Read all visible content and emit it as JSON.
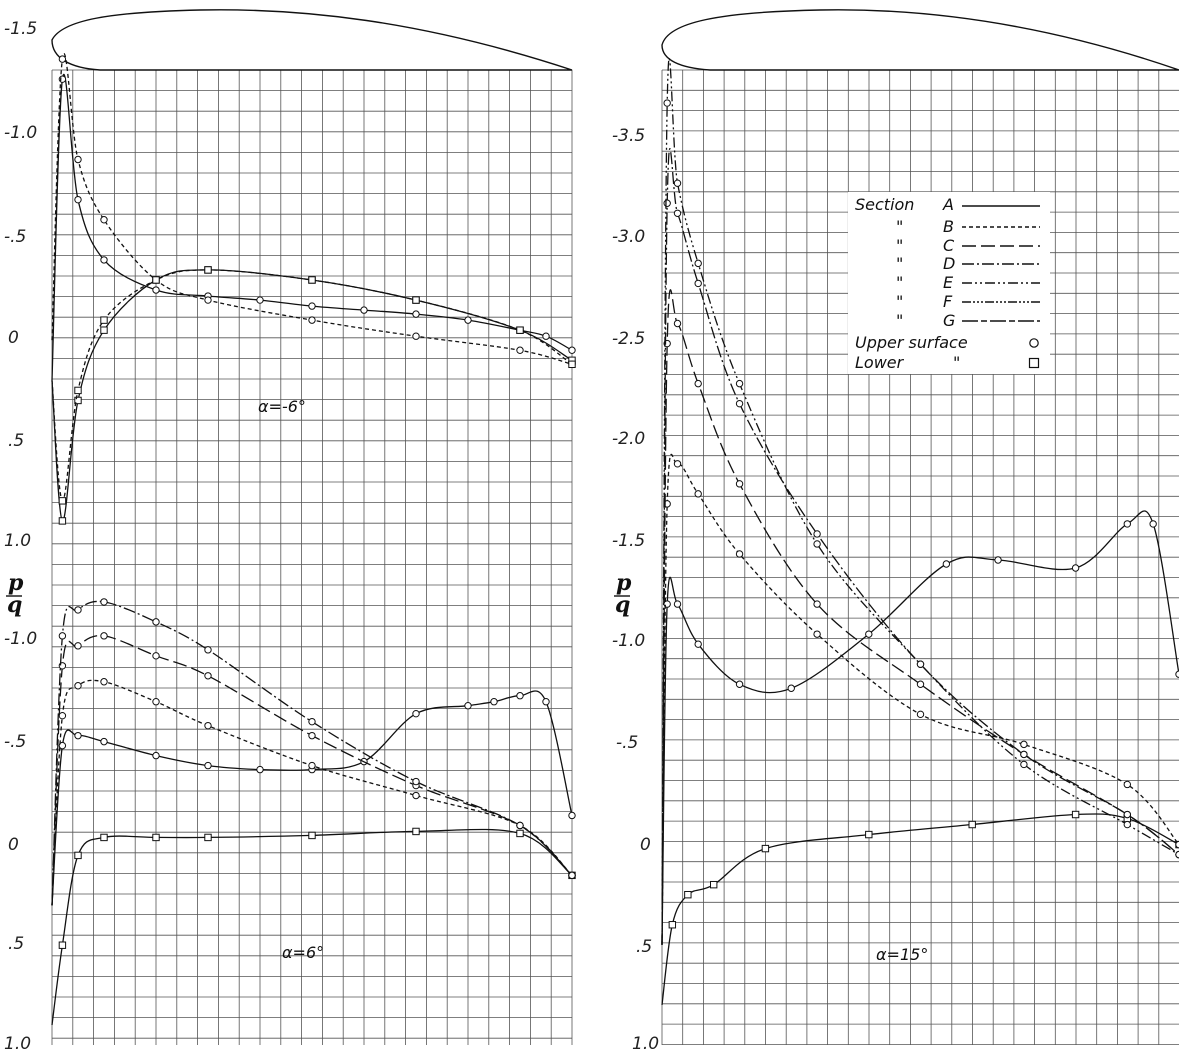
{
  "chart_data": [
    {
      "type": "line",
      "panel": "left-top",
      "annotation": "α=-6°",
      "ylabel": "",
      "y_ticks": [
        "-1.5",
        "-1.0",
        "-.5",
        "0",
        ".5",
        "1.0"
      ],
      "ylim": [
        1.0,
        -1.55
      ],
      "xlim": [
        0,
        1
      ],
      "series": [
        {
          "name": "A",
          "surface": "upper",
          "x": [
            0,
            0.02,
            0.05,
            0.1,
            0.2,
            0.3,
            0.4,
            0.5,
            0.6,
            0.7,
            0.8,
            0.9,
            0.95,
            1.0
          ],
          "y": [
            0.2,
            -1.3,
            -0.7,
            -0.4,
            -0.25,
            -0.22,
            -0.2,
            -0.17,
            -0.15,
            -0.13,
            -0.1,
            -0.05,
            -0.02,
            0.05
          ]
        },
        {
          "name": "A",
          "surface": "lower",
          "x": [
            0,
            0.02,
            0.05,
            0.1,
            0.2,
            0.3,
            0.5,
            0.7,
            0.9,
            1.0
          ],
          "y": [
            0.2,
            0.9,
            0.3,
            -0.05,
            -0.3,
            -0.35,
            -0.3,
            -0.2,
            -0.05,
            0.1
          ]
        },
        {
          "name": "B",
          "surface": "upper",
          "x": [
            0,
            0.02,
            0.05,
            0.1,
            0.2,
            0.3,
            0.5,
            0.7,
            0.9,
            1.0
          ],
          "y": [
            0.0,
            -1.4,
            -0.9,
            -0.6,
            -0.3,
            -0.2,
            -0.1,
            -0.02,
            0.05,
            0.12
          ]
        },
        {
          "name": "B",
          "surface": "lower",
          "x": [
            0,
            0.02,
            0.05,
            0.1,
            0.2,
            0.3,
            0.5,
            0.7,
            0.9,
            1.0
          ],
          "y": [
            0.2,
            0.8,
            0.25,
            -0.1,
            -0.3,
            -0.35,
            -0.3,
            -0.2,
            -0.05,
            0.12
          ]
        }
      ]
    },
    {
      "type": "line",
      "panel": "left-bottom",
      "annotation": "α=6°",
      "ylabel": "p/q",
      "y_ticks": [
        "-1.0",
        "-.5",
        "0",
        ".5",
        "1.0"
      ],
      "ylim": [
        1.0,
        -1.4
      ],
      "xlim": [
        0,
        1
      ],
      "series": [
        {
          "name": "A",
          "surface": "upper",
          "x": [
            0,
            0.02,
            0.05,
            0.1,
            0.2,
            0.3,
            0.4,
            0.5,
            0.6,
            0.7,
            0.8,
            0.85,
            0.9,
            0.95,
            1.0
          ],
          "y": [
            0.3,
            -0.5,
            -0.55,
            -0.52,
            -0.45,
            -0.4,
            -0.38,
            -0.38,
            -0.42,
            -0.66,
            -0.7,
            -0.72,
            -0.75,
            -0.72,
            -0.15
          ]
        },
        {
          "name": "A",
          "surface": "lower",
          "x": [
            0,
            0.02,
            0.05,
            0.1,
            0.2,
            0.3,
            0.5,
            0.7,
            0.9,
            1.0
          ],
          "y": [
            0.9,
            0.5,
            0.05,
            -0.04,
            -0.04,
            -0.04,
            -0.05,
            -0.07,
            -0.06,
            0.15
          ]
        },
        {
          "name": "B",
          "surface": "upper",
          "x": [
            0,
            0.02,
            0.05,
            0.1,
            0.2,
            0.3,
            0.5,
            0.7,
            0.9,
            1.0
          ],
          "y": [
            0.3,
            -0.65,
            -0.8,
            -0.82,
            -0.72,
            -0.6,
            -0.4,
            -0.25,
            -0.1,
            0.15
          ]
        },
        {
          "name": "C",
          "surface": "upper",
          "x": [
            0,
            0.02,
            0.05,
            0.1,
            0.2,
            0.3,
            0.5,
            0.7,
            0.9,
            1.0
          ],
          "y": [
            0.3,
            -0.9,
            -1.0,
            -1.05,
            -0.95,
            -0.85,
            -0.55,
            -0.3,
            -0.1,
            0.15
          ]
        },
        {
          "name": "D",
          "surface": "upper",
          "x": [
            0,
            0.02,
            0.05,
            0.1,
            0.2,
            0.3,
            0.5,
            0.7,
            0.9,
            1.0
          ],
          "y": [
            0.3,
            -1.05,
            -1.18,
            -1.22,
            -1.12,
            -0.98,
            -0.62,
            -0.32,
            -0.1,
            0.15
          ]
        }
      ]
    },
    {
      "type": "line",
      "panel": "right",
      "annotation": "α=15°",
      "ylabel": "p/q",
      "y_ticks": [
        "-3.5",
        "-3.0",
        "-2.5",
        "-2.0",
        "-1.5",
        "-1.0",
        "-.5",
        "0",
        ".5",
        "1.0"
      ],
      "ylim": [
        1.0,
        -3.8
      ],
      "xlim": [
        0,
        1
      ],
      "legend": {
        "entries": [
          {
            "label": "Section",
            "letter": "A",
            "style": "solid"
          },
          {
            "label": "\"",
            "letter": "B",
            "style": "short-dash"
          },
          {
            "label": "\"",
            "letter": "C",
            "style": "long-dash"
          },
          {
            "label": "\"",
            "letter": "D",
            "style": "dash-dot"
          },
          {
            "label": "\"",
            "letter": "E",
            "style": "dash-double-dot"
          },
          {
            "label": "\"",
            "letter": "F",
            "style": "dash-triple-dot"
          },
          {
            "label": "\"",
            "letter": "G",
            "style": "long-short"
          }
        ],
        "markers": [
          {
            "label": "Upper surface",
            "symbol": "o"
          },
          {
            "label": "Lower",
            "ditto": "\"",
            "symbol": "□"
          }
        ],
        "position": "upper-center"
      },
      "series": [
        {
          "name": "A",
          "surface": "upper",
          "x": [
            0,
            0.01,
            0.03,
            0.07,
            0.15,
            0.25,
            0.4,
            0.55,
            0.65,
            0.8,
            0.9,
            0.95,
            1.0
          ],
          "y": [
            0.5,
            -1.2,
            -1.2,
            -1.0,
            -0.8,
            -0.78,
            -1.05,
            -1.4,
            -1.42,
            -1.38,
            -1.6,
            -1.6,
            -0.85
          ]
        },
        {
          "name": "A",
          "surface": "lower",
          "x": [
            0,
            0.02,
            0.05,
            0.1,
            0.2,
            0.4,
            0.6,
            0.8,
            0.9,
            1.0
          ],
          "y": [
            0.8,
            0.4,
            0.25,
            0.2,
            0.02,
            -0.05,
            -0.1,
            -0.15,
            -0.13,
            0.0
          ]
        },
        {
          "name": "B",
          "surface": "upper",
          "x": [
            0,
            0.01,
            0.03,
            0.07,
            0.15,
            0.3,
            0.5,
            0.7,
            0.9,
            1.0
          ],
          "y": [
            0.5,
            -1.7,
            -1.9,
            -1.75,
            -1.45,
            -1.05,
            -0.65,
            -0.5,
            -0.3,
            0.0
          ]
        },
        {
          "name": "C",
          "surface": "upper",
          "x": [
            0,
            0.01,
            0.03,
            0.07,
            0.15,
            0.3,
            0.5,
            0.7,
            0.9,
            1.0
          ],
          "y": [
            0.5,
            -2.5,
            -2.6,
            -2.3,
            -1.8,
            -1.2,
            -0.8,
            -0.45,
            -0.15,
            0.05
          ]
        },
        {
          "name": "D",
          "surface": "upper",
          "x": [
            0,
            0.01,
            0.03,
            0.07,
            0.15,
            0.3,
            0.5,
            0.7,
            0.9,
            1.0
          ],
          "y": [
            0.5,
            -3.2,
            -3.15,
            -2.8,
            -2.2,
            -1.55,
            -0.9,
            -0.45,
            -0.15,
            0.05
          ]
        },
        {
          "name": "E",
          "surface": "upper",
          "x": [
            0,
            0.01,
            0.03,
            0.07,
            0.15,
            0.3,
            0.5,
            0.7,
            0.9,
            1.0
          ],
          "y": [
            0.5,
            -3.7,
            -3.3,
            -2.9,
            -2.3,
            -1.5,
            -0.9,
            -0.4,
            -0.1,
            0.05
          ]
        }
      ]
    }
  ]
}
